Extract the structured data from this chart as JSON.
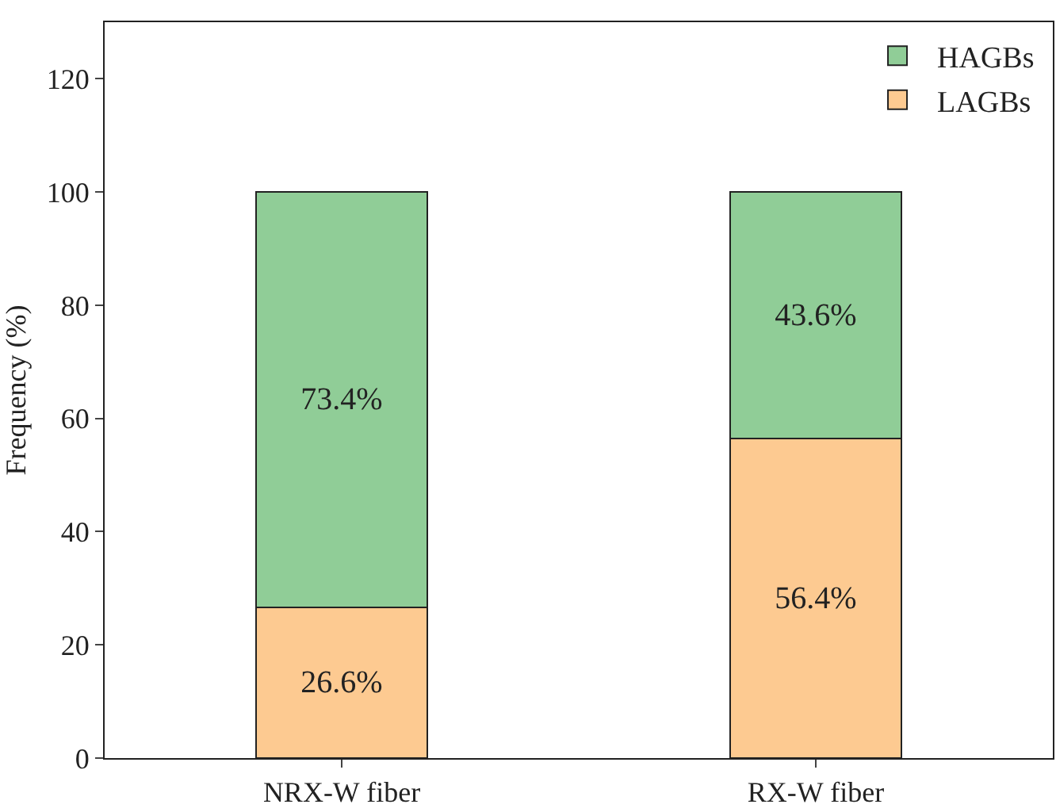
{
  "chart_data": {
    "type": "bar",
    "stacked": true,
    "ylabel": "Frequency (%)",
    "categories": [
      "NRX-W fiber",
      "RX-W fiber"
    ],
    "series": [
      {
        "name": "LAGBs",
        "color": "#fdca91",
        "values": [
          26.6,
          56.4
        ],
        "value_labels": [
          "26.6%",
          "56.4%"
        ]
      },
      {
        "name": "HAGBs",
        "color": "#90cd97",
        "values": [
          73.4,
          43.6
        ],
        "value_labels": [
          "73.4%",
          "43.6%"
        ]
      }
    ],
    "ylim": [
      0,
      130
    ],
    "yticks": [
      0,
      20,
      40,
      60,
      80,
      100,
      120
    ],
    "legend": "top right"
  }
}
